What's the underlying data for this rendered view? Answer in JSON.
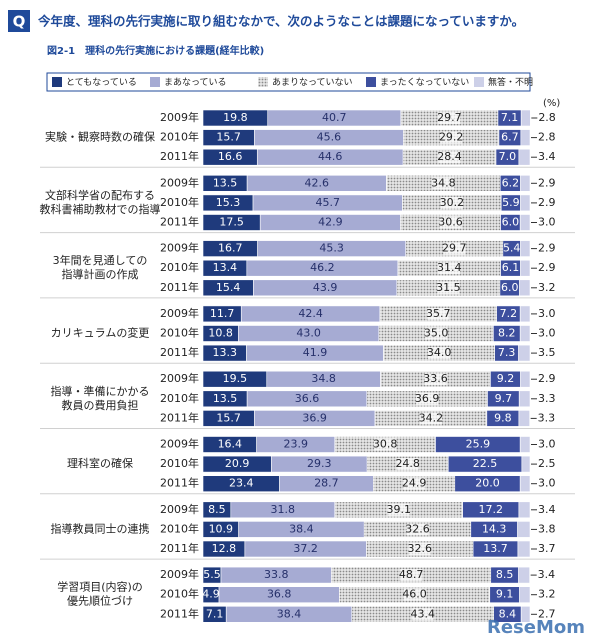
{
  "question_mark": "Q",
  "question": "今年度、理科の先行実施に取り組むなかで、次のようなことは課題になっていますか。",
  "chart_data": {
    "type": "stacked_bar_h",
    "title": "図2-1　理科の先行実施における課題(経年比較)",
    "unit": "(%)",
    "xlim": [
      0,
      100
    ],
    "legend": "top",
    "groups": [
      {
        "label": [
          "実験・観察時数の確保"
        ]
      },
      {
        "label": [
          "文部科学省の配布する",
          "教科書補助教材での指導"
        ]
      },
      {
        "label": [
          "3年間を見通しての",
          "指導計画の作成"
        ]
      },
      {
        "label": [
          "カリキュラムの変更"
        ]
      },
      {
        "label": [
          "指導・準備にかかる",
          "教員の費用負担"
        ]
      },
      {
        "label": [
          "理科室の確保"
        ]
      },
      {
        "label": [
          "指導教員同士の連携"
        ]
      },
      {
        "label": [
          "学習項目(内容)の",
          "優先順位づけ"
        ]
      }
    ],
    "categories": [
      "2009年",
      "2010年",
      "2011年",
      "2009年",
      "2010年",
      "2011年",
      "2009年",
      "2010年",
      "2011年",
      "2009年",
      "2010年",
      "2011年",
      "2009年",
      "2010年",
      "2011年",
      "2009年",
      "2010年",
      "2011年",
      "2009年",
      "2010年",
      "2011年",
      "2009年",
      "2010年",
      "2011年"
    ],
    "series": [
      {
        "name": "とてもなっている",
        "color": "#1f3a7c",
        "label_color": "#ffffff",
        "values": [
          19.8,
          15.7,
          16.6,
          13.5,
          15.3,
          17.5,
          16.7,
          13.4,
          15.4,
          11.7,
          10.8,
          13.3,
          19.5,
          13.5,
          15.7,
          16.4,
          20.9,
          23.4,
          8.5,
          10.9,
          12.8,
          5.5,
          4.9,
          7.1
        ],
        "value_labels": [
          "19.8",
          "15.7",
          "16.6",
          "13.5",
          "15.3",
          "17.5",
          "16.7",
          "13.4",
          "15.4",
          "11.7",
          "10.8",
          "13.3",
          "19.5",
          "13.5",
          "15.7",
          "16.4",
          "20.9",
          "23.4",
          "8.5",
          "10.9",
          "12.8",
          "5.5",
          "4.9",
          "7.1"
        ]
      },
      {
        "name": "まあなっている",
        "color": "#a6abd3",
        "label_color": "#26306a",
        "values": [
          40.7,
          45.6,
          44.6,
          42.6,
          45.7,
          42.9,
          45.3,
          46.2,
          43.9,
          42.4,
          43.0,
          41.9,
          34.8,
          36.6,
          36.9,
          23.9,
          29.3,
          28.7,
          31.8,
          38.4,
          37.2,
          33.8,
          36.8,
          38.4
        ],
        "value_labels": [
          "40.7",
          "45.6",
          "44.6",
          "42.6",
          "45.7",
          "42.9",
          "45.3",
          "46.2",
          "43.9",
          "42.4",
          "43.0",
          "41.9",
          "34.8",
          "36.6",
          "36.9",
          "23.9",
          "29.3",
          "28.7",
          "31.8",
          "38.4",
          "37.2",
          "33.8",
          "36.8",
          "38.4"
        ]
      },
      {
        "name": "あまりなっていない",
        "color": "#9a9a9a",
        "dotted": true,
        "label_color": "#222222",
        "values": [
          29.7,
          29.2,
          28.4,
          34.8,
          30.2,
          30.6,
          29.7,
          31.4,
          31.5,
          35.7,
          35.0,
          34.0,
          33.6,
          36.9,
          34.2,
          30.8,
          24.8,
          24.9,
          39.1,
          32.6,
          32.6,
          48.7,
          46.0,
          43.4
        ],
        "value_labels": [
          "29.7",
          "29.2",
          "28.4",
          "34.8",
          "30.2",
          "30.6",
          "29.7",
          "31.4",
          "31.5",
          "35.7",
          "35.0",
          "34.0",
          "33.6",
          "36.9",
          "34.2",
          "30.8",
          "24.8",
          "24.9",
          "39.1",
          "32.6",
          "32.6",
          "48.7",
          "46.0",
          "43.4"
        ]
      },
      {
        "name": "まったくなっていない",
        "color": "#3d4f9e",
        "label_color": "#ffffff",
        "values": [
          7.1,
          6.7,
          7.0,
          6.2,
          5.9,
          6.0,
          5.4,
          6.1,
          6.0,
          7.2,
          8.2,
          7.3,
          9.2,
          9.7,
          9.8,
          25.9,
          22.5,
          20.0,
          17.2,
          14.3,
          13.7,
          8.5,
          9.1,
          8.4
        ],
        "value_labels": [
          "7.1",
          "6.7",
          "7.0",
          "6.2",
          "5.9",
          "6.0",
          "5.4",
          "6.1",
          "6.0",
          "7.2",
          "8.2",
          "7.3",
          "9.2",
          "9.7",
          "9.8",
          "25.9",
          "22.5",
          "20.0",
          "17.2",
          "14.3",
          "13.7",
          "8.5",
          "9.1",
          "8.4"
        ]
      },
      {
        "name": "無答・不明",
        "color": "#cdd0e8",
        "outside": true,
        "label_color": "#222222",
        "values": [
          2.8,
          2.8,
          3.4,
          2.9,
          2.9,
          3.0,
          2.9,
          2.9,
          3.2,
          3.0,
          3.0,
          3.5,
          2.9,
          3.3,
          3.3,
          3.0,
          2.5,
          3.0,
          3.4,
          3.8,
          3.7,
          3.4,
          3.2,
          2.7
        ],
        "value_labels": [
          "2.8",
          "2.8",
          "3.4",
          "2.9",
          "2.9",
          "3.0",
          "2.9",
          "2.9",
          "3.2",
          "3.0",
          "3.0",
          "3.5",
          "2.9",
          "3.3",
          "3.3",
          "3.0",
          "2.5",
          "3.0",
          "3.4",
          "3.8",
          "3.7",
          "3.4",
          "3.2",
          "2.7"
        ]
      }
    ]
  },
  "watermark": "ReseMom"
}
